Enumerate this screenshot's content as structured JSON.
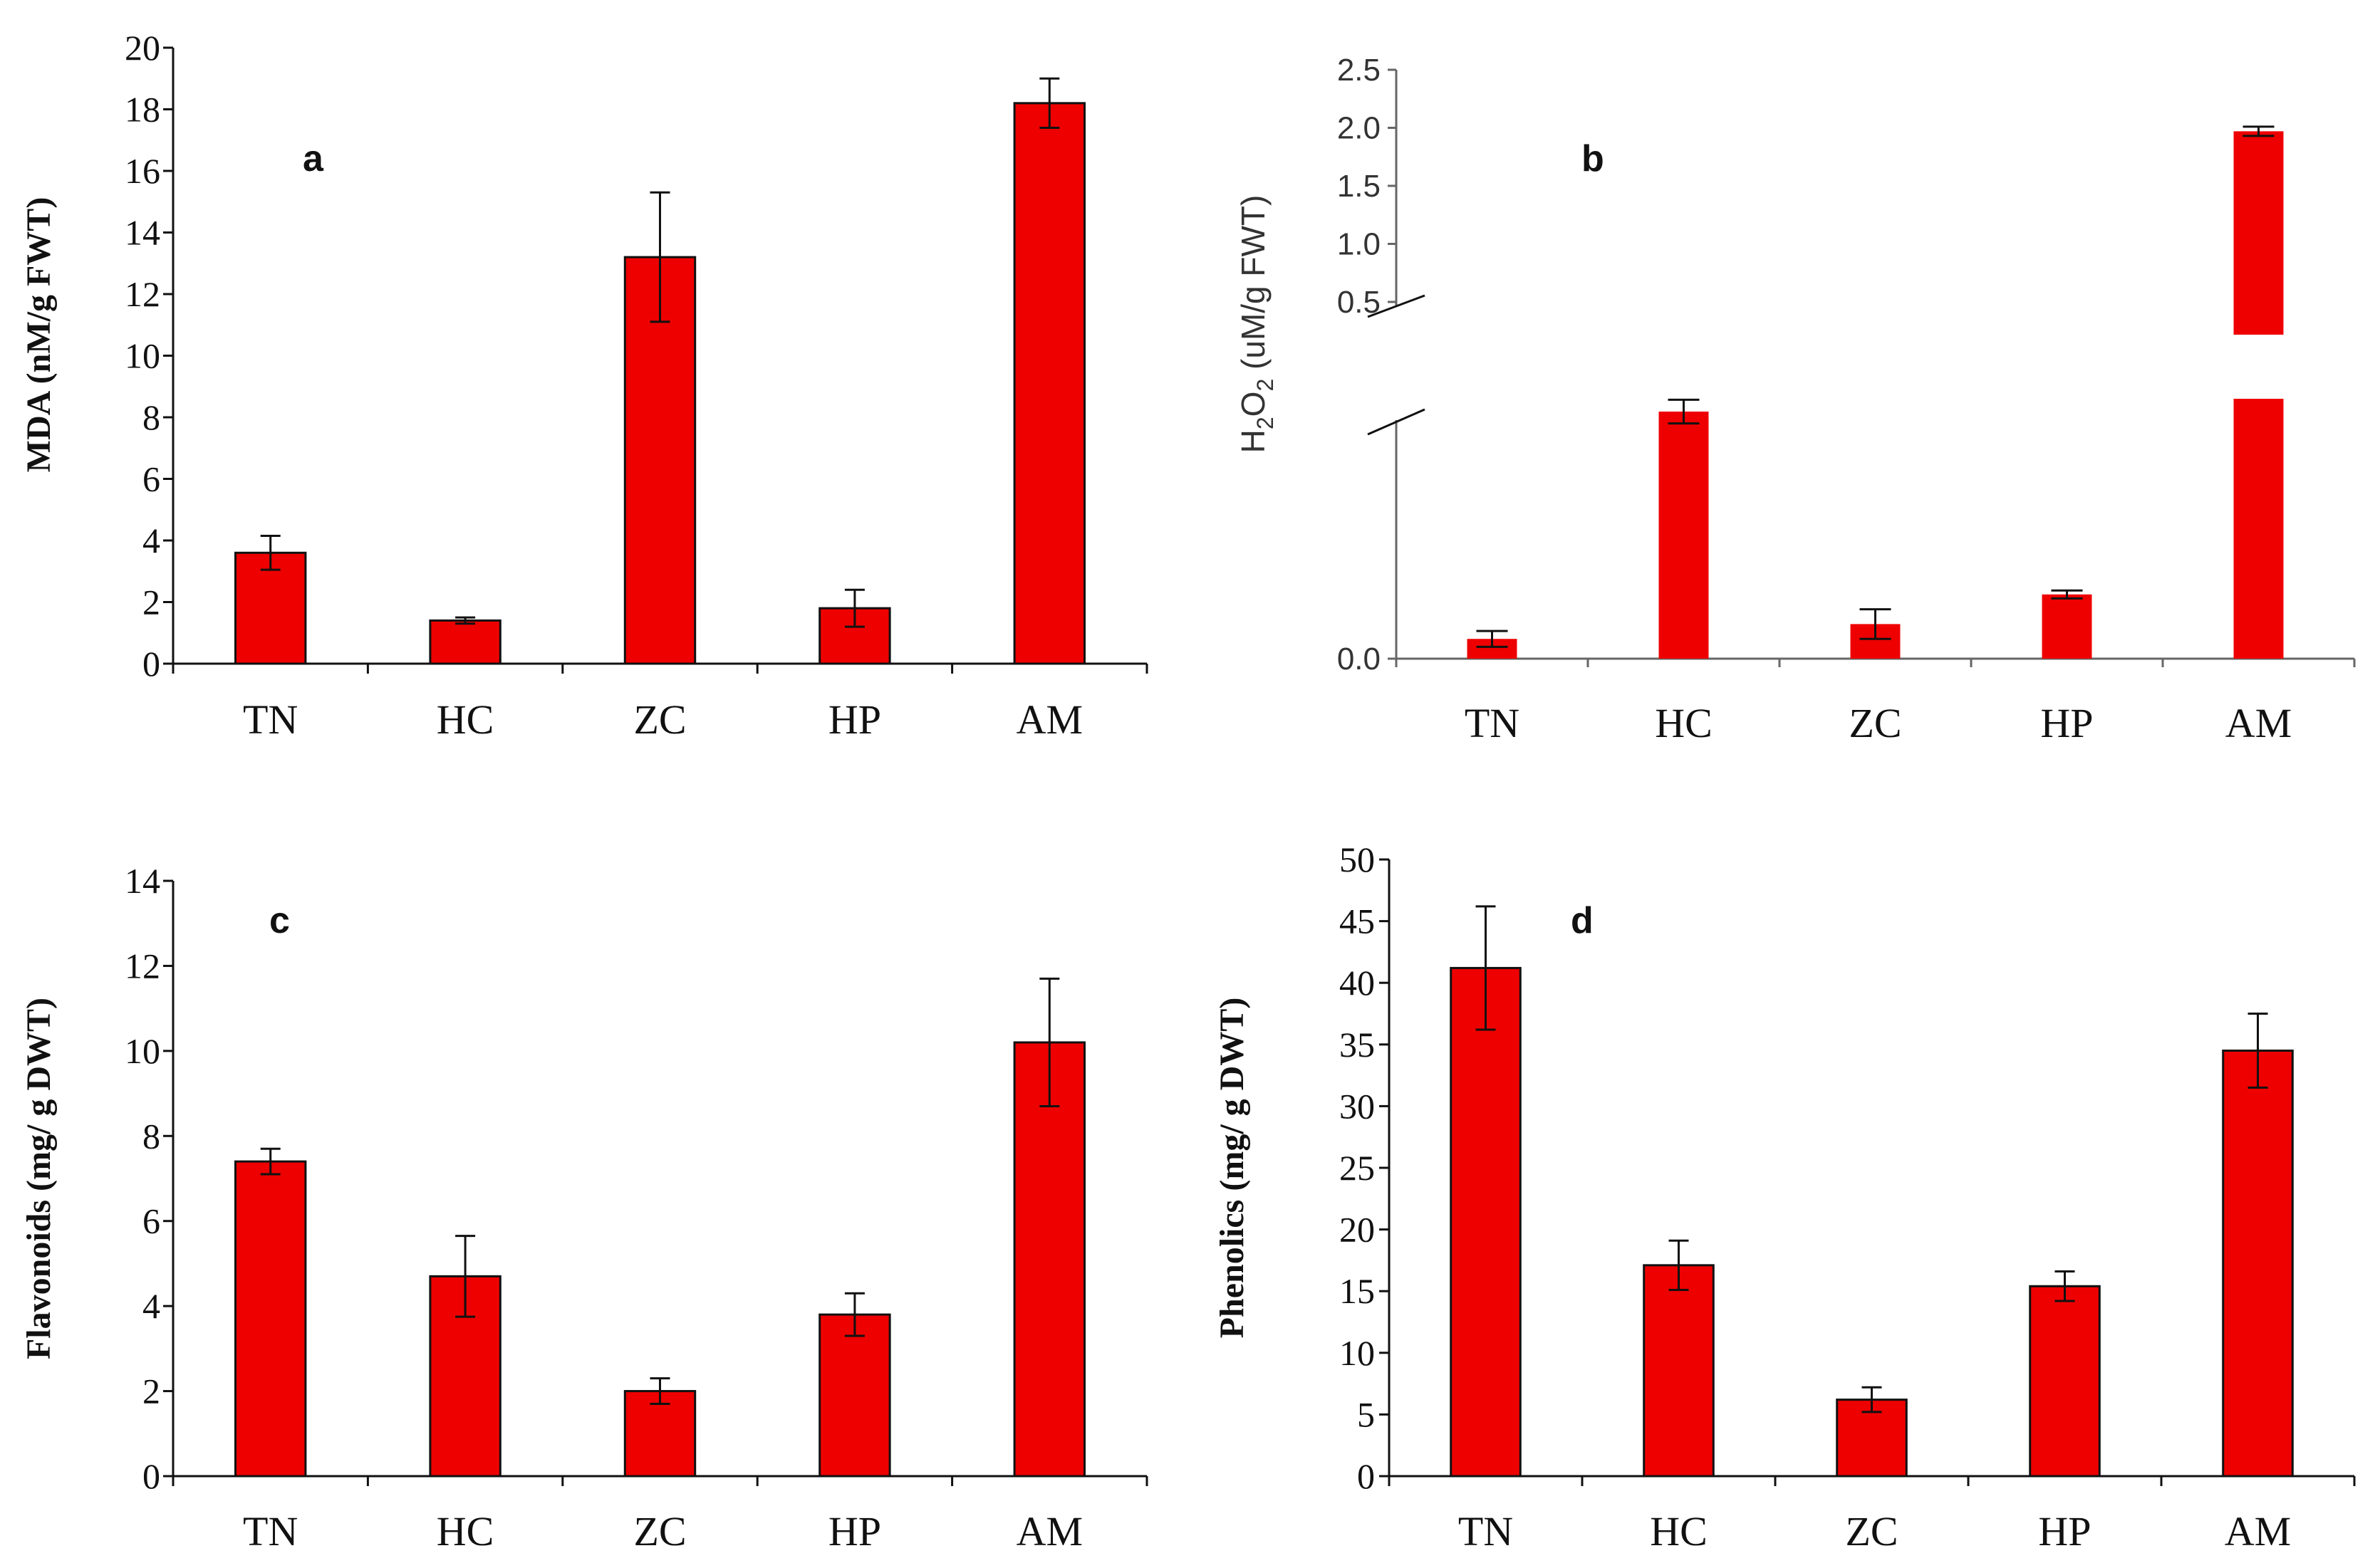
{
  "chart_data": [
    {
      "type": "bar",
      "panel_label": "a",
      "categories": [
        "TN",
        "HC",
        "ZC",
        "HP",
        "AM"
      ],
      "values": [
        3.6,
        1.4,
        13.2,
        1.8,
        18.2
      ],
      "errors": [
        0.55,
        0.1,
        2.1,
        0.6,
        0.8
      ],
      "ylabel": "MDA (nM/g FWT)",
      "ylim": [
        0,
        20
      ],
      "yticks": [
        0,
        2,
        4,
        6,
        8,
        10,
        12,
        14,
        16,
        18,
        20
      ],
      "ytick_labels": [
        "0",
        "2",
        "4",
        "6",
        "8",
        "10",
        "12",
        "14",
        "16",
        "18",
        "20"
      ],
      "bar_color": "#ee0000"
    },
    {
      "type": "bar",
      "panel_label": "b",
      "categories": [
        "TN",
        "HC",
        "ZC",
        "HP",
        "AM"
      ],
      "values": [
        0.02,
        0.25,
        0.035,
        0.065,
        1.97
      ],
      "errors": [
        0.008,
        0.012,
        0.015,
        0.004,
        0.04
      ],
      "ylabel_prefix": "H",
      "ylabel_sub1": "2",
      "ylabel_mid": "O",
      "ylabel_sub2": "2",
      "ylabel_suffix": " (uM/g FWT)",
      "axis_break": true,
      "lower_range": [
        0,
        0.25
      ],
      "upper_range": [
        0.3,
        2.5
      ],
      "yticks": [
        0.0,
        0.5,
        1.0,
        1.5,
        2.0,
        2.5
      ],
      "ytick_labels": [
        "0.0",
        "0.5",
        "1.0",
        "1.5",
        "2.0",
        "2.5"
      ],
      "bar_color": "#ee0000"
    },
    {
      "type": "bar",
      "panel_label": "c",
      "categories": [
        "TN",
        "HC",
        "ZC",
        "HP",
        "AM"
      ],
      "values": [
        7.4,
        4.7,
        2.0,
        3.8,
        10.2
      ],
      "errors": [
        0.3,
        0.95,
        0.3,
        0.5,
        1.5
      ],
      "ylabel": "Flavonoids (mg/ g DWT)",
      "ylim": [
        0,
        14
      ],
      "yticks": [
        0,
        2,
        4,
        6,
        8,
        10,
        12,
        14
      ],
      "ytick_labels": [
        "0",
        "2",
        "4",
        "6",
        "8",
        "10",
        "12",
        "14"
      ],
      "bar_color": "#ee0000"
    },
    {
      "type": "bar",
      "panel_label": "d",
      "categories": [
        "TN",
        "HC",
        "ZC",
        "HP",
        "AM"
      ],
      "values": [
        41.2,
        17.1,
        6.2,
        15.4,
        34.5
      ],
      "errors": [
        5.0,
        2.0,
        1.0,
        1.2,
        3.0
      ],
      "ylabel": "Phenolics (mg/ g DWT)",
      "ylim": [
        0,
        50
      ],
      "yticks": [
        0,
        5,
        10,
        15,
        20,
        25,
        30,
        35,
        40,
        45,
        50
      ],
      "ytick_labels": [
        "0",
        "5",
        "10",
        "15",
        "20",
        "25",
        "30",
        "35",
        "40",
        "45",
        "50"
      ],
      "bar_color": "#ee0000"
    }
  ]
}
